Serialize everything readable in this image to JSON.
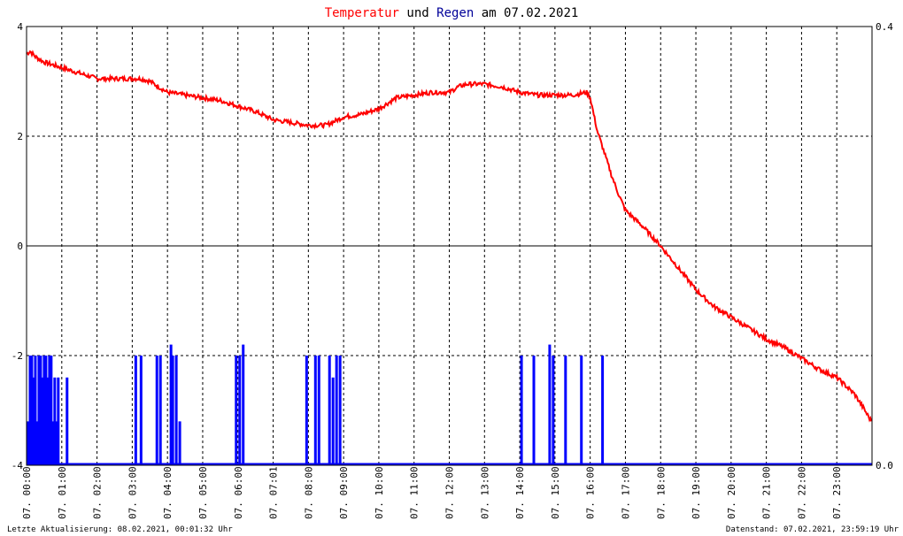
{
  "title": {
    "part1": "Temperatur",
    "part2": " und ",
    "part3": "Regen",
    "part4": " am 07.02.2021",
    "color1": "#ff0000",
    "color3": "#000099"
  },
  "footer": {
    "left": "Letzte Aktualisierung: 08.02.2021, 00:01:32 Uhr",
    "right": "Datenstand: 07.02.2021, 23:59:19 Uhr"
  },
  "chart_data": {
    "type": "line",
    "title": "Temperatur und Regen am 07.02.2021",
    "grid": true,
    "y_left": {
      "min": -4,
      "max": 4,
      "ticks": [
        "4",
        "2",
        "0",
        "-2",
        "-4"
      ]
    },
    "y_right": {
      "min": 0.0,
      "max": 0.4,
      "ticks": [
        "0.4",
        "0.0"
      ]
    },
    "x_ticks": [
      "07. 00:00",
      "07. 01:00",
      "07. 02:00",
      "07. 03:00",
      "07. 04:00",
      "07. 05:00",
      "07. 06:00",
      "07. 07:01",
      "07. 08:00",
      "07. 09:00",
      "07. 10:00",
      "07. 11:00",
      "07. 12:00",
      "07. 13:00",
      "07. 14:00",
      "07. 15:00",
      "07. 16:00",
      "07. 17:00",
      "07. 18:00",
      "07. 19:00",
      "07. 20:00",
      "07. 21:00",
      "07. 22:00",
      "07. 23:00"
    ],
    "series": [
      {
        "name": "Temperatur",
        "color": "#ff0000",
        "x_hours": [
          0,
          0.1,
          0.25,
          0.5,
          0.75,
          1.0,
          1.25,
          1.5,
          1.75,
          2.0,
          2.25,
          2.5,
          2.75,
          3.0,
          3.25,
          3.5,
          3.75,
          4.0,
          4.5,
          5.0,
          5.5,
          6.0,
          6.5,
          7.0,
          7.5,
          8.0,
          8.5,
          9.0,
          9.5,
          10.0,
          10.5,
          11.0,
          11.5,
          12.0,
          12.25,
          12.5,
          12.75,
          13.0,
          13.5,
          14.0,
          14.5,
          15.0,
          15.5,
          15.75,
          15.9,
          16.0,
          16.1,
          16.2,
          16.4,
          16.6,
          16.8,
          17.0,
          17.5,
          18.0,
          18.5,
          19.0,
          19.5,
          20.0,
          20.5,
          21.0,
          21.5,
          22.0,
          22.5,
          23.0,
          23.5,
          23.75,
          23.98
        ],
        "values": [
          3.5,
          3.55,
          3.45,
          3.35,
          3.3,
          3.25,
          3.2,
          3.15,
          3.1,
          3.05,
          3.05,
          3.05,
          3.05,
          3.05,
          3.05,
          3.0,
          2.9,
          2.8,
          2.75,
          2.7,
          2.65,
          2.55,
          2.45,
          2.3,
          2.25,
          2.2,
          2.2,
          2.35,
          2.4,
          2.5,
          2.7,
          2.75,
          2.8,
          2.8,
          2.9,
          2.95,
          2.95,
          2.95,
          2.9,
          2.8,
          2.75,
          2.75,
          2.75,
          2.78,
          2.8,
          2.7,
          2.4,
          2.1,
          1.7,
          1.3,
          0.95,
          0.65,
          0.35,
          0.0,
          -0.4,
          -0.8,
          -1.1,
          -1.3,
          -1.5,
          -1.7,
          -1.85,
          -2.05,
          -2.25,
          -2.4,
          -2.7,
          -2.95,
          -3.2
        ]
      },
      {
        "name": "Regen",
        "color": "#0000ff",
        "bar_hours": [
          0.05,
          0.1,
          0.15,
          0.2,
          0.25,
          0.3,
          0.35,
          0.4,
          0.45,
          0.5,
          0.55,
          0.6,
          0.65,
          0.7,
          0.75,
          0.8,
          0.85,
          0.9,
          1.15,
          3.1,
          3.25,
          3.7,
          3.8,
          4.1,
          4.15,
          4.25,
          4.35,
          5.95,
          6.05,
          6.15,
          7.95,
          8.2,
          8.3,
          8.6,
          8.7,
          8.8,
          8.9,
          14.05,
          14.4,
          14.85,
          14.95,
          15.3,
          15.75,
          16.35
        ],
        "bar_values": [
          0.04,
          0.1,
          0.1,
          0.08,
          0.1,
          0.04,
          0.1,
          0.1,
          0.08,
          0.1,
          0.1,
          0.08,
          0.1,
          0.1,
          0.04,
          0.08,
          0.04,
          0.08,
          0.08,
          0.1,
          0.1,
          0.1,
          0.1,
          0.11,
          0.1,
          0.1,
          0.04,
          0.1,
          0.1,
          0.11,
          0.1,
          0.1,
          0.1,
          0.1,
          0.08,
          0.1,
          0.1,
          0.1,
          0.1,
          0.11,
          0.1,
          0.1,
          0.1,
          0.1
        ]
      }
    ]
  }
}
